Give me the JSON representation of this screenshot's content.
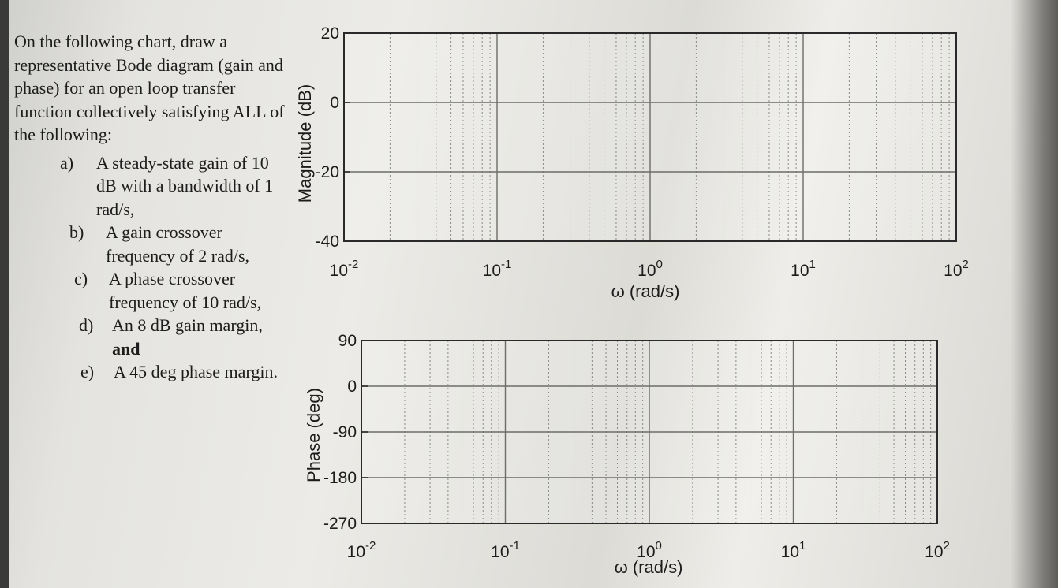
{
  "question": {
    "intro": "On the following chart, draw a representative Bode diagram (gain and phase) for an open loop transfer function collectively satisfying ALL of the following:",
    "items": [
      {
        "letter": "a)",
        "text": "A steady-state gain of 10 dB with a bandwidth of 1 rad/s,"
      },
      {
        "letter": "b)",
        "text": "A gain crossover frequency of 2 rad/s,"
      },
      {
        "letter": "c)",
        "text": "A phase crossover frequency of 10 rad/s,"
      },
      {
        "letter": "d)",
        "text": "An 8 dB gain margin,",
        "suffix": "and"
      },
      {
        "letter": "e)",
        "text": "A 45 deg phase margin."
      }
    ]
  },
  "chart_data": [
    {
      "type": "line",
      "series": [],
      "ylabel": "Magnitude (dB)",
      "xlabel": "ω (rad/s)",
      "yticks": [
        "20",
        "0",
        "-20",
        "-40"
      ],
      "xticks": [
        "10-2",
        "10-1",
        "100",
        "101",
        "102"
      ],
      "ylim": [
        -40,
        20
      ],
      "xlim": [
        0.01,
        100
      ],
      "xscale": "log",
      "grid": true
    },
    {
      "type": "line",
      "series": [],
      "ylabel": "Phase (deg)",
      "xlabel": "ω (rad/s)",
      "yticks": [
        "90",
        "0",
        "-90",
        "-180",
        "-270"
      ],
      "xticks": [
        "10-2",
        "10-1",
        "100",
        "101",
        "102"
      ],
      "ylim": [
        -270,
        90
      ],
      "xlim": [
        0.01,
        100
      ],
      "xscale": "log",
      "grid": true
    }
  ]
}
